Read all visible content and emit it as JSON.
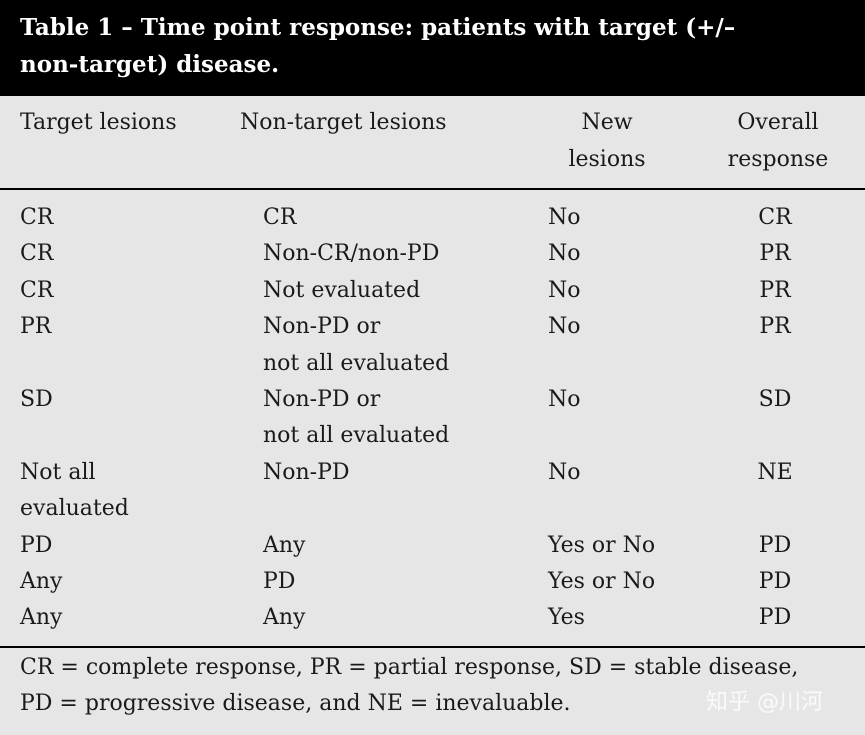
{
  "title": [
    "Table 1 – Time point response: patients with target (+/–",
    "non-target) disease."
  ],
  "table": {
    "header": [
      [
        "Target lesions"
      ],
      [
        "Non-target lesions"
      ],
      [
        "New",
        "lesions"
      ],
      [
        "Overall",
        "response"
      ]
    ],
    "rows": [
      [
        [
          "CR"
        ],
        [
          "CR"
        ],
        [
          "No"
        ],
        [
          "CR"
        ]
      ],
      [
        [
          "CR"
        ],
        [
          "Non-CR/non-PD"
        ],
        [
          "No"
        ],
        [
          "PR"
        ]
      ],
      [
        [
          "CR"
        ],
        [
          "Not evaluated"
        ],
        [
          "No"
        ],
        [
          "PR"
        ]
      ],
      [
        [
          "PR"
        ],
        [
          "Non-PD or",
          "not all evaluated"
        ],
        [
          "No"
        ],
        [
          "PR"
        ]
      ],
      [
        [
          "SD"
        ],
        [
          "Non-PD or",
          "not all evaluated"
        ],
        [
          "No"
        ],
        [
          "SD"
        ]
      ],
      [
        [
          "Not all",
          "evaluated"
        ],
        [
          "Non-PD"
        ],
        [
          "No"
        ],
        [
          "NE"
        ]
      ],
      [
        [
          "PD"
        ],
        [
          "Any"
        ],
        [
          "Yes or No"
        ],
        [
          "PD"
        ]
      ],
      [
        [
          "Any"
        ],
        [
          "PD"
        ],
        [
          "Yes or No"
        ],
        [
          "PD"
        ]
      ],
      [
        [
          "Any"
        ],
        [
          "Any"
        ],
        [
          "Yes"
        ],
        [
          "PD"
        ]
      ]
    ]
  },
  "footnote": [
    "CR = complete response, PR = partial response, SD = stable disease,",
    "PD = progressive disease, and NE = inevaluable."
  ],
  "watermark": "知乎 @川河"
}
